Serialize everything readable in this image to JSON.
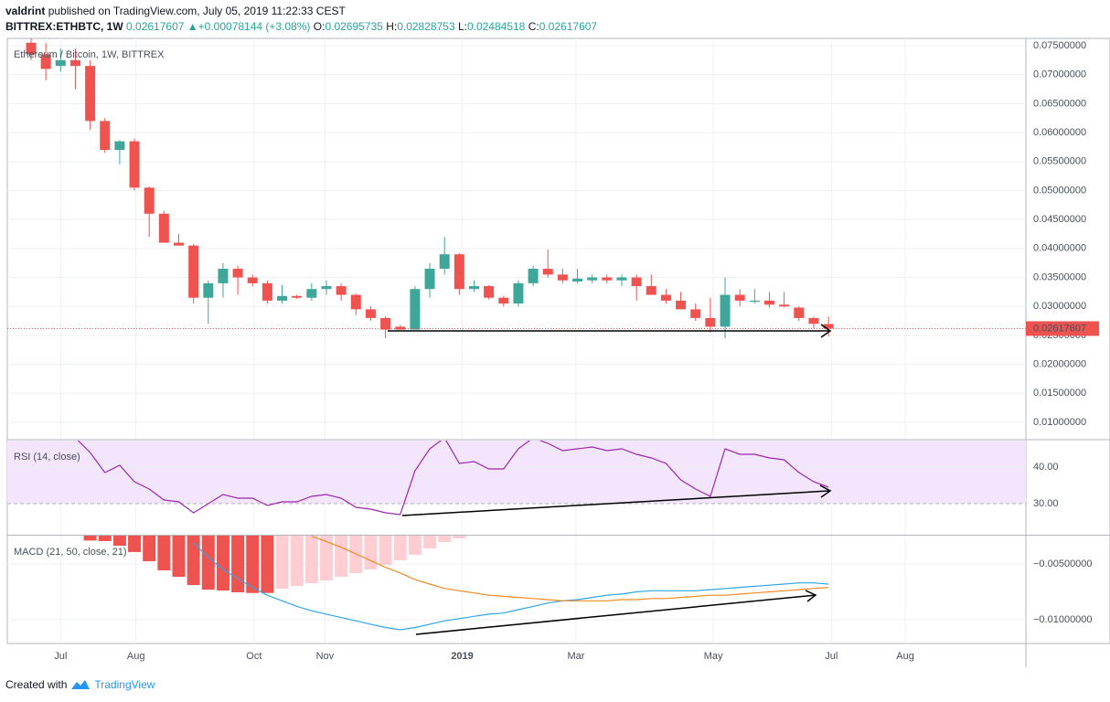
{
  "header": {
    "author": "valdrint",
    "published": "published on TradingView.com, July 05, 2019 11:22:33 CEST",
    "symbol": "BITTREX:ETHBTC, 1W",
    "change": "+0.00078144 (+3.08%)",
    "o_label": "O:",
    "h_label": "H:",
    "l_label": "L:",
    "c_label": "C:"
  },
  "footer": {
    "created": "Created with",
    "brand": "TradingView"
  },
  "chart_data": [
    {
      "type": "candlestick",
      "title": "Ethereum / Bitcoin, 1W, BITTREX",
      "up_color": "#3fa69a",
      "down_color": "#ef5350",
      "open": [
        0.0755,
        0.0735,
        0.0715,
        0.0725,
        0.0715,
        0.062,
        0.057,
        0.0585,
        0.0505,
        0.046,
        0.041,
        0.0405,
        0.0315,
        0.034,
        0.0365,
        0.035,
        0.034,
        0.031,
        0.0318,
        0.0315,
        0.033,
        0.0335,
        0.032,
        0.0295,
        0.028,
        0.0265,
        0.026,
        0.033,
        0.0365,
        0.039,
        0.033,
        0.0335,
        0.0315,
        0.0305,
        0.034,
        0.0365,
        0.0355,
        0.0343,
        0.0345,
        0.035,
        0.0345,
        0.035,
        0.0335,
        0.032,
        0.031,
        0.0295,
        0.028,
        0.0265,
        0.032,
        0.0308,
        0.031,
        0.0303,
        0.0298,
        0.028,
        0.02695735
      ],
      "high": [
        0.0765,
        0.0755,
        0.0745,
        0.0745,
        0.0725,
        0.0625,
        0.0587,
        0.059,
        0.0507,
        0.0465,
        0.0425,
        0.0408,
        0.0345,
        0.0375,
        0.037,
        0.0355,
        0.0345,
        0.0337,
        0.032,
        0.034,
        0.0345,
        0.034,
        0.0322,
        0.03,
        0.0283,
        0.0268,
        0.0335,
        0.0375,
        0.042,
        0.0392,
        0.0345,
        0.0337,
        0.0318,
        0.0345,
        0.037,
        0.0398,
        0.0365,
        0.0365,
        0.0355,
        0.0355,
        0.0355,
        0.0355,
        0.0355,
        0.033,
        0.0325,
        0.0305,
        0.0315,
        0.035,
        0.033,
        0.033,
        0.0325,
        0.0325,
        0.03,
        0.0282,
        0.02828753
      ],
      "low": [
        0.0725,
        0.069,
        0.0705,
        0.0675,
        0.0605,
        0.0565,
        0.0545,
        0.05,
        0.042,
        0.041,
        0.0405,
        0.0305,
        0.027,
        0.0315,
        0.032,
        0.0335,
        0.0305,
        0.0305,
        0.0313,
        0.031,
        0.032,
        0.031,
        0.0285,
        0.0275,
        0.0245,
        0.026,
        0.026,
        0.0315,
        0.0355,
        0.032,
        0.0325,
        0.0312,
        0.03,
        0.03,
        0.0335,
        0.035,
        0.034,
        0.034,
        0.034,
        0.034,
        0.0335,
        0.031,
        0.032,
        0.0305,
        0.0295,
        0.0275,
        0.0255,
        0.0245,
        0.03,
        0.0305,
        0.0298,
        0.0298,
        0.0275,
        0.0262,
        0.02484518
      ],
      "close": [
        0.0735,
        0.071,
        0.0725,
        0.0715,
        0.062,
        0.057,
        0.0585,
        0.0505,
        0.046,
        0.041,
        0.0405,
        0.0315,
        0.034,
        0.0365,
        0.035,
        0.034,
        0.031,
        0.0318,
        0.0315,
        0.033,
        0.0335,
        0.032,
        0.0295,
        0.028,
        0.026,
        0.026,
        0.033,
        0.0365,
        0.039,
        0.033,
        0.0335,
        0.0315,
        0.0305,
        0.034,
        0.0365,
        0.0355,
        0.0345,
        0.0348,
        0.035,
        0.0345,
        0.035,
        0.0335,
        0.032,
        0.031,
        0.0295,
        0.028,
        0.0265,
        0.032,
        0.031,
        0.031,
        0.0303,
        0.03,
        0.028,
        0.027,
        0.02617607
      ],
      "ylim": [
        0.00716,
        0.07626
      ],
      "yticks": [
        {
          "value": 0.01,
          "label": "0.01000000"
        },
        {
          "value": 0.015,
          "label": "0.01500000"
        },
        {
          "value": 0.02,
          "label": "0.02000000"
        },
        {
          "value": 0.025,
          "label": "0.02500000"
        },
        {
          "value": 0.03,
          "label": "0.03000000"
        },
        {
          "value": 0.035,
          "label": "0.03500000"
        },
        {
          "value": 0.04,
          "label": "0.04000000"
        },
        {
          "value": 0.045,
          "label": "0.04500000"
        },
        {
          "value": 0.05,
          "label": "0.05000000"
        },
        {
          "value": 0.055,
          "label": "0.05500000"
        },
        {
          "value": 0.06,
          "label": "0.06000000"
        },
        {
          "value": 0.065,
          "label": "0.06500000"
        },
        {
          "value": 0.07,
          "label": "0.07000000"
        },
        {
          "value": 0.075,
          "label": "0.07500000"
        }
      ],
      "grid": true
    },
    {
      "type": "line",
      "title": "RSI (14, close)",
      "series": [
        {
          "name": "RSI",
          "color": "#9c27b0",
          "values": [
            null,
            null,
            null,
            48,
            44,
            38.5,
            40.5,
            36,
            34,
            31,
            30.5,
            27.5,
            30,
            32.5,
            31.5,
            31.5,
            29.5,
            30.5,
            30.5,
            32,
            32.5,
            31.5,
            29,
            28.5,
            27.5,
            27,
            39,
            45,
            48,
            41,
            41.5,
            39.5,
            39.5,
            45,
            48,
            46.5,
            44.5,
            45,
            45.5,
            44.5,
            45,
            43.5,
            42.5,
            41,
            36.5,
            34,
            32,
            45,
            43.5,
            43.5,
            42.5,
            42,
            38.5,
            36,
            34.5
          ]
        }
      ],
      "ylim": [
        21.5,
        47.25
      ],
      "yticks": [
        {
          "value": 30,
          "label": "30.00"
        },
        {
          "value": 40,
          "label": "40.00"
        }
      ],
      "band_color": "#f3e5fb",
      "grid": true
    },
    {
      "type": "macd",
      "title": "MACD (21, 50, close, 21)",
      "histogram": {
        "falling_color": "#ef5350",
        "rising_color": "#ffcdd2",
        "values": [
          null,
          null,
          null,
          null,
          -0.0029,
          -0.00295,
          -0.00336,
          -0.00393,
          -0.00475,
          -0.00557,
          -0.00615,
          -0.00689,
          -0.0073,
          -0.00738,
          -0.00754,
          -0.0076,
          -0.0076,
          -0.00721,
          -0.00697,
          -0.00672,
          -0.00648,
          -0.00615,
          -0.00582,
          -0.00549,
          -0.00508,
          -0.00467,
          -0.00418,
          -0.00361,
          -0.00303,
          -0.0027,
          null,
          null,
          null,
          null,
          null,
          null,
          null,
          null,
          null,
          null,
          null,
          null,
          null,
          null,
          null,
          null,
          null,
          null,
          null,
          null,
          null,
          null,
          null,
          null,
          null
        ]
      },
      "series": [
        {
          "name": "MACD",
          "color": "#2fa5e6",
          "values": [
            null,
            null,
            null,
            null,
            null,
            null,
            null,
            null,
            null,
            null,
            null,
            -0.0031,
            -0.0044,
            -0.0055,
            -0.0063,
            -0.0071,
            -0.0078,
            -0.0083,
            -0.0088,
            -0.0092,
            -0.0095,
            -0.0098,
            -0.0101,
            -0.0104,
            -0.0107,
            -0.0109,
            -0.0107,
            -0.0104,
            -0.0101,
            -0.0099,
            -0.0097,
            -0.0095,
            -0.0094,
            -0.0091,
            -0.0088,
            -0.0085,
            -0.0083,
            -0.0082,
            -0.008,
            -0.0078,
            -0.0077,
            -0.0075,
            -0.0074,
            -0.0074,
            -0.0074,
            -0.0074,
            -0.0073,
            -0.0072,
            -0.0071,
            -0.007,
            -0.0069,
            -0.0068,
            -0.0067,
            -0.0067,
            -0.0068
          ]
        },
        {
          "name": "Signal",
          "color": "#f08a24",
          "values": [
            null,
            null,
            null,
            null,
            null,
            null,
            null,
            null,
            null,
            null,
            null,
            null,
            null,
            null,
            null,
            null,
            null,
            null,
            null,
            -0.0025,
            -0.003,
            -0.0035,
            -0.0041,
            -0.0047,
            -0.0053,
            -0.0058,
            -0.0064,
            -0.0068,
            -0.0072,
            -0.0074,
            -0.0076,
            -0.0078,
            -0.0079,
            -0.008,
            -0.0081,
            -0.0082,
            -0.0083,
            -0.0083,
            -0.0083,
            -0.0083,
            -0.0082,
            -0.0082,
            -0.0081,
            -0.0081,
            -0.008,
            -0.0079,
            -0.0078,
            -0.0078,
            -0.0077,
            -0.0076,
            -0.0075,
            -0.0074,
            -0.0073,
            -0.0072,
            -0.0071
          ]
        }
      ],
      "ylim": [
        -0.011967,
        -0.002459
      ],
      "yticks": [
        {
          "value": -0.01,
          "label": "−0.01000000"
        },
        {
          "value": -0.005,
          "label": "−0.00500000"
        }
      ],
      "xlim": [
        -1.61,
        67.37
      ],
      "xticks": [
        {
          "value": 2.0,
          "label": "Jul"
        },
        {
          "value": 7.1,
          "label": "Aug"
        },
        {
          "value": 15.1,
          "label": "Oct"
        },
        {
          "value": 19.9,
          "label": "Nov"
        },
        {
          "value": 29.2,
          "label": "2019"
        },
        {
          "value": 36.9,
          "label": "Mar"
        },
        {
          "value": 46.2,
          "label": "May"
        },
        {
          "value": 54.2,
          "label": "Jul"
        },
        {
          "value": 59.2,
          "label": "Aug"
        }
      ],
      "grid": true
    }
  ]
}
